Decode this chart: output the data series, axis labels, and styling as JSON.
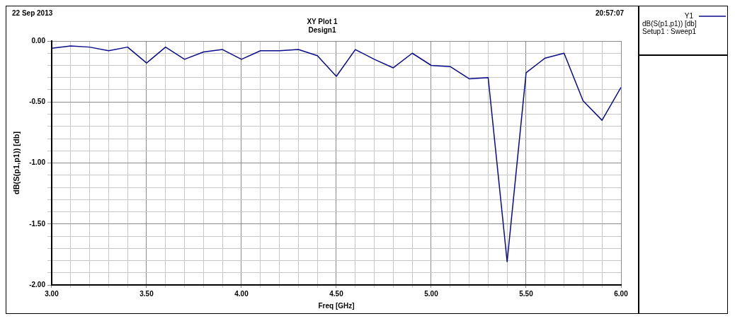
{
  "chart_data": {
    "type": "line",
    "title": "XY Plot 1",
    "subtitle": "Design1",
    "xlabel": "Freq [GHz]",
    "ylabel": "dB(S(p1,p1)) [db]",
    "annotations": [
      "22 Sep 2013",
      "20:57:07",
      "dB(S(p1,p1)) [db]",
      "Setup1 : Sweep1"
    ],
    "x": [
      3.0,
      3.1,
      3.2,
      3.3,
      3.4,
      3.5,
      3.6,
      3.7,
      3.8,
      3.9,
      4.0,
      4.1,
      4.2,
      4.3,
      4.4,
      4.5,
      4.6,
      4.7,
      4.8,
      4.9,
      5.0,
      5.1,
      5.2,
      5.3,
      5.4,
      5.5,
      5.6,
      5.7,
      5.8,
      5.9,
      6.0
    ],
    "series": [
      {
        "name": "Y1",
        "color": "#0a0a8c",
        "values": [
          -0.06,
          -0.04,
          -0.05,
          -0.08,
          -0.05,
          -0.18,
          -0.05,
          -0.15,
          -0.09,
          -0.07,
          -0.15,
          -0.08,
          -0.08,
          -0.07,
          -0.12,
          -0.29,
          -0.07,
          -0.15,
          -0.22,
          -0.1,
          -0.2,
          -0.21,
          -0.31,
          -0.3,
          -1.81,
          -0.26,
          -0.14,
          -0.1,
          -0.49,
          -0.65,
          -0.38
        ]
      }
    ],
    "xlim": [
      3.0,
      6.0
    ],
    "xticks": [
      {
        "value": 3.0,
        "label": "3.00"
      },
      {
        "value": 3.1,
        "label": null
      },
      {
        "value": 3.2,
        "label": null
      },
      {
        "value": 3.3,
        "label": null
      },
      {
        "value": 3.4,
        "label": null
      },
      {
        "value": 3.5,
        "label": "3.50"
      },
      {
        "value": 3.6,
        "label": null
      },
      {
        "value": 3.7,
        "label": null
      },
      {
        "value": 3.8,
        "label": null
      },
      {
        "value": 3.9,
        "label": null
      },
      {
        "value": 4.0,
        "label": "4.00"
      },
      {
        "value": 4.1,
        "label": null
      },
      {
        "value": 4.2,
        "label": null
      },
      {
        "value": 4.3,
        "label": null
      },
      {
        "value": 4.4,
        "label": null
      },
      {
        "value": 4.5,
        "label": "4.50"
      },
      {
        "value": 4.6,
        "label": null
      },
      {
        "value": 4.7,
        "label": null
      },
      {
        "value": 4.8,
        "label": null
      },
      {
        "value": 4.9,
        "label": null
      },
      {
        "value": 5.0,
        "label": "5.00"
      },
      {
        "value": 5.1,
        "label": null
      },
      {
        "value": 5.2,
        "label": null
      },
      {
        "value": 5.3,
        "label": null
      },
      {
        "value": 5.4,
        "label": null
      },
      {
        "value": 5.5,
        "label": "5.50"
      },
      {
        "value": 5.6,
        "label": null
      },
      {
        "value": 5.7,
        "label": null
      },
      {
        "value": 5.8,
        "label": null
      },
      {
        "value": 5.9,
        "label": null
      },
      {
        "value": 6.0,
        "label": "6.00"
      }
    ],
    "ylim": [
      -2.0,
      0.0
    ],
    "yticks": [
      {
        "value": -2.0,
        "label": "-2.00"
      },
      {
        "value": -1.9,
        "label": null
      },
      {
        "value": -1.8,
        "label": null
      },
      {
        "value": -1.7,
        "label": null
      },
      {
        "value": -1.6,
        "label": null
      },
      {
        "value": -1.5,
        "label": "-1.50"
      },
      {
        "value": -1.4,
        "label": null
      },
      {
        "value": -1.3,
        "label": null
      },
      {
        "value": -1.2,
        "label": null
      },
      {
        "value": -1.1,
        "label": null
      },
      {
        "value": -1.0,
        "label": "-1.00"
      },
      {
        "value": -0.9,
        "label": null
      },
      {
        "value": -0.8,
        "label": null
      },
      {
        "value": -0.7,
        "label": null
      },
      {
        "value": -0.6,
        "label": null
      },
      {
        "value": -0.5,
        "label": "-0.50"
      },
      {
        "value": -0.4,
        "label": null
      },
      {
        "value": -0.3,
        "label": null
      },
      {
        "value": -0.2,
        "label": null
      },
      {
        "value": -0.1,
        "label": null
      },
      {
        "value": 0.0,
        "label": "0.00"
      }
    ],
    "grid": true,
    "legend": "top right"
  }
}
